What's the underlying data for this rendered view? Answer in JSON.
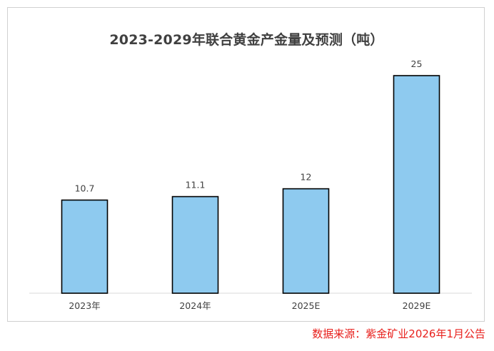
{
  "chart_data": {
    "type": "bar",
    "title": "2023-2029年联合黄金产金量及预测（吨）",
    "categories": [
      "2023年",
      "2024年",
      "2025E",
      "2029E"
    ],
    "values": [
      10.7,
      11.1,
      12,
      25
    ],
    "data_labels": [
      "10.7",
      "11.1",
      "12",
      "25"
    ],
    "xlabel": "",
    "ylabel": "",
    "ylim": [
      0,
      25
    ],
    "grid": false,
    "legend": "none",
    "bar_color": "#8ecaef",
    "bar_edge_color": "#000000"
  },
  "source_note": "数据来源：紫金矿业2026年1月公告",
  "colors": {
    "source_note": "#e8201c",
    "axis": "#d9d9d9",
    "label_text": "#404040"
  }
}
